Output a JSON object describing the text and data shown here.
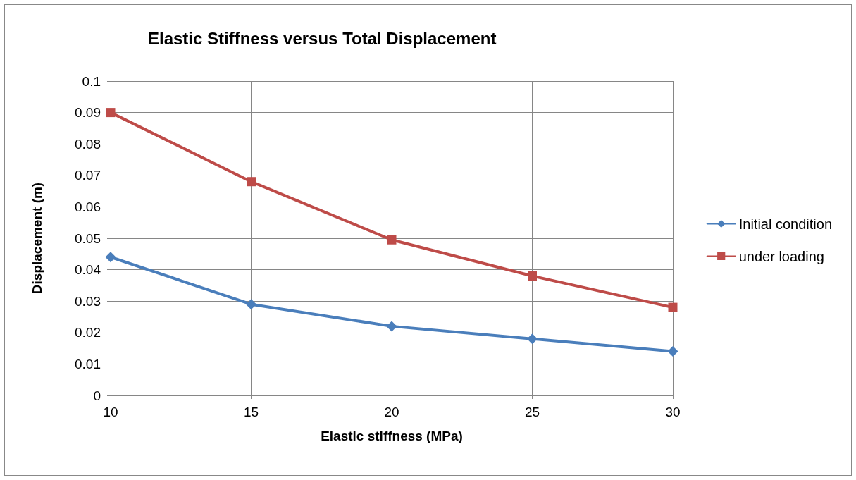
{
  "chart_data": {
    "type": "line",
    "title": "Elastic Stiffness versus Total Displacement",
    "xlabel": "Elastic stiffness (MPa)",
    "ylabel": "Displacement (m)",
    "x": [
      10,
      15,
      20,
      25,
      30
    ],
    "series": [
      {
        "name": "Initial condition",
        "color": "#4a7ebb",
        "marker": "diamond",
        "values": [
          0.044,
          0.029,
          0.022,
          0.018,
          0.014
        ]
      },
      {
        "name": "under loading",
        "color": "#be4b48",
        "marker": "square",
        "values": [
          0.09,
          0.068,
          0.0495,
          0.038,
          0.028
        ]
      }
    ],
    "xlim": [
      10,
      30
    ],
    "xticks": [
      10,
      15,
      20,
      25,
      30
    ],
    "ylim": [
      0,
      0.1
    ],
    "yticks": [
      0,
      0.01,
      0.02,
      0.03,
      0.04,
      0.05,
      0.06,
      0.07,
      0.08,
      0.09,
      0.1
    ],
    "grid": true,
    "legend": "right",
    "line_style": "solid"
  }
}
